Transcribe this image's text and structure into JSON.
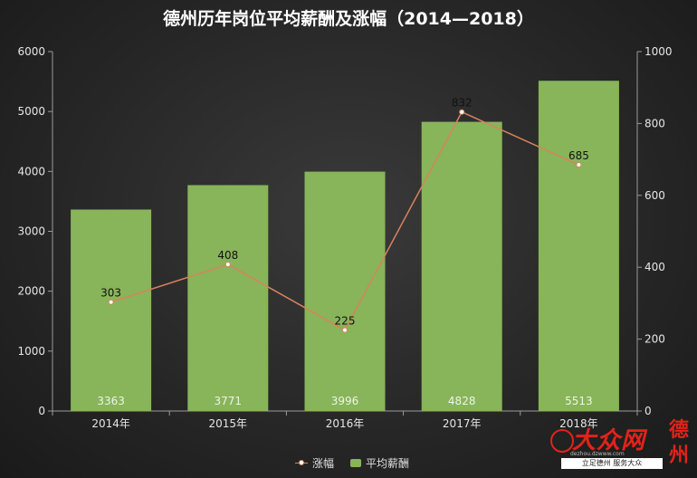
{
  "chart_data": {
    "type": "bar",
    "title": "德州历年岗位平均薪酬及涨幅（2014—2018）",
    "categories": [
      "2014年",
      "2015年",
      "2016年",
      "2017年",
      "2018年"
    ],
    "series": [
      {
        "name": "平均薪酬",
        "type": "bar",
        "axis": "left",
        "values": [
          3363,
          3771,
          3996,
          4828,
          5513
        ],
        "color": "#88b45a"
      },
      {
        "name": "涨幅",
        "type": "line",
        "axis": "right",
        "values": [
          303,
          408,
          225,
          832,
          685
        ],
        "color": "#d6845c"
      }
    ],
    "y_left": {
      "ticks": [
        0,
        1000,
        2000,
        3000,
        4000,
        5000,
        6000
      ],
      "range": [
        0,
        6000
      ]
    },
    "y_right": {
      "ticks": [
        0,
        200,
        400,
        600,
        800,
        1000
      ],
      "range": [
        0,
        1000
      ]
    },
    "legend_position": "bottom-center"
  },
  "watermark": {
    "brand": "大众网",
    "url": "dezhou.dzwww.com",
    "slogan": "立足德州  服务大众",
    "city": "德州"
  }
}
